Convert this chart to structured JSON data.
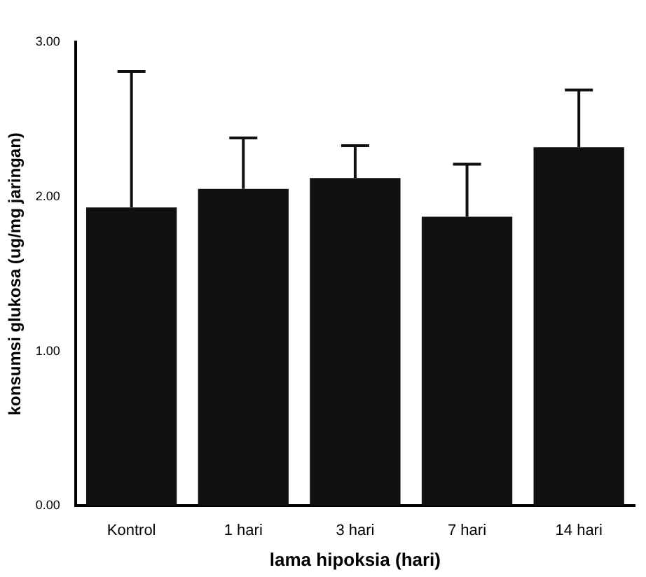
{
  "chart_data": {
    "type": "bar",
    "xlabel": "lama hipoksia (hari)",
    "ylabel": "konsumsi glukosa (ug/mg jaringan)",
    "categories": [
      "Kontrol",
      "1 hari",
      "3 hari",
      "7 hari",
      "14 hari"
    ],
    "values": [
      1.93,
      2.05,
      2.12,
      1.87,
      2.32
    ],
    "errors": [
      [
        1.93,
        2.81
      ],
      [
        2.05,
        2.38
      ],
      [
        2.12,
        2.33
      ],
      [
        1.87,
        2.21
      ],
      [
        2.32,
        2.69
      ]
    ],
    "color": "#111111",
    "ylim": [
      0,
      3
    ],
    "yticks": [
      {
        "value": 0,
        "label": "0.00"
      },
      {
        "value": 1,
        "label": "1.00"
      },
      {
        "value": 2,
        "label": "2.00"
      },
      {
        "value": 3,
        "label": "3.00"
      }
    ],
    "grid": false,
    "legend": false
  }
}
